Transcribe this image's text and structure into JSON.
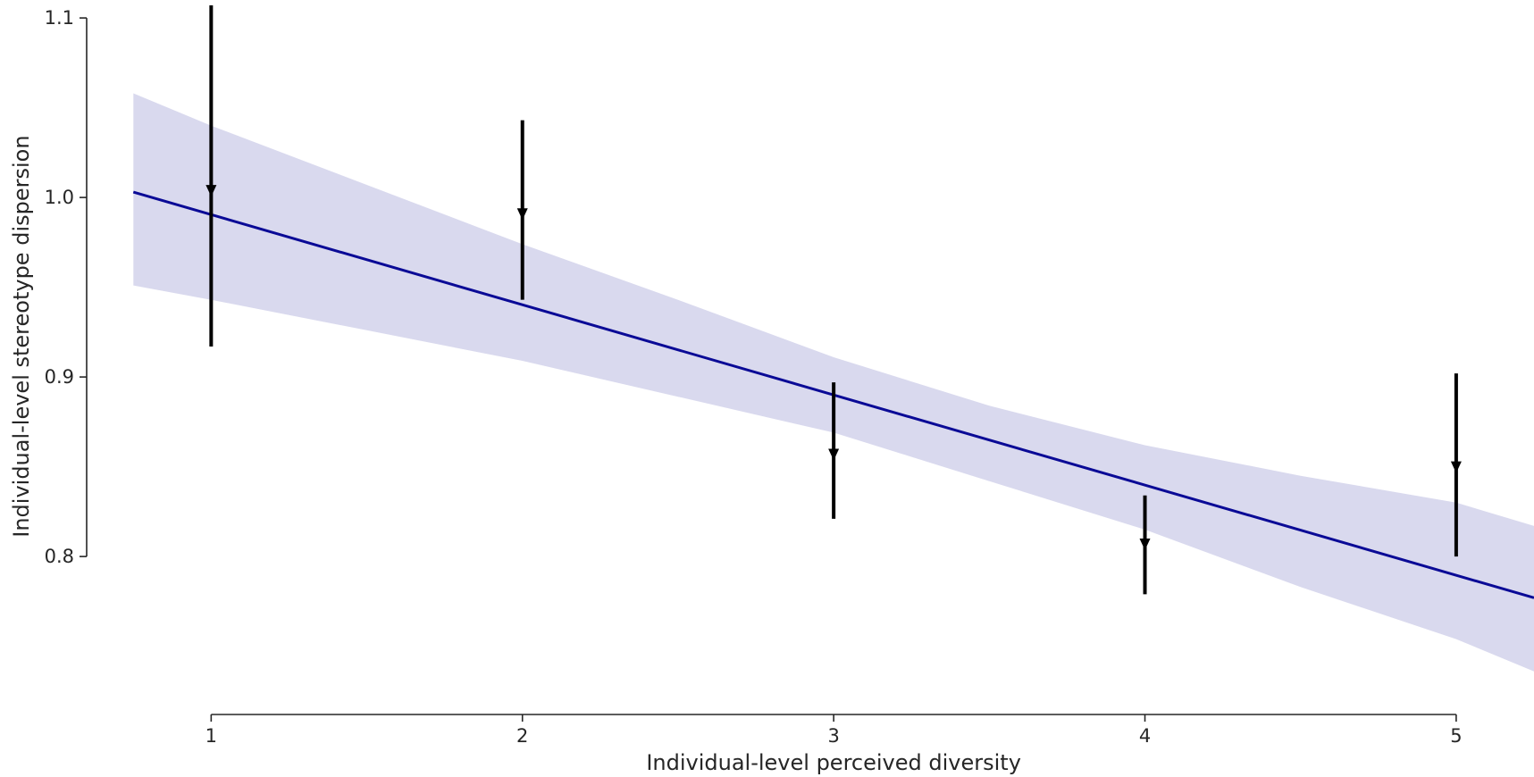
{
  "chart_data": {
    "type": "line",
    "title": "",
    "xlabel": "Individual-level perceived diversity",
    "ylabel": "Individual-level stereotype dispersion",
    "xlim": [
      0.6,
      5.25
    ],
    "ylim": [
      0.712,
      1.11
    ],
    "xticks": [
      1,
      2,
      3,
      4,
      5
    ],
    "xtick_labels": [
      "1",
      "2",
      "3",
      "4",
      "5"
    ],
    "yticks": [
      0.8,
      0.9,
      1.0,
      1.1
    ],
    "ytick_labels": [
      "0.8",
      "0.9",
      "1.0",
      "1.1"
    ],
    "grid": false,
    "colors": {
      "regression_line": "#0a0a96",
      "confidence_band": "#d9d9ee",
      "error_bars": "#000000",
      "axis": "#262626"
    },
    "regression_line": {
      "x": [
        0.75,
        5.25
      ],
      "y": [
        1.003,
        0.777
      ]
    },
    "confidence_band": {
      "x": [
        0.75,
        1.0,
        1.5,
        2.0,
        2.5,
        3.0,
        3.5,
        4.0,
        4.5,
        5.0,
        5.25
      ],
      "upper": [
        1.058,
        1.04,
        1.007,
        0.974,
        0.943,
        0.911,
        0.884,
        0.862,
        0.845,
        0.83,
        0.817
      ],
      "lower": [
        0.951,
        0.943,
        0.926,
        0.909,
        0.889,
        0.869,
        0.842,
        0.815,
        0.783,
        0.754,
        0.736
      ]
    },
    "points": [
      {
        "x": 1,
        "y": 1.004,
        "lower": 0.917,
        "upper": 1.107
      },
      {
        "x": 2,
        "y": 0.991,
        "lower": 0.943,
        "upper": 1.043
      },
      {
        "x": 3,
        "y": 0.857,
        "lower": 0.821,
        "upper": 0.897
      },
      {
        "x": 4,
        "y": 0.807,
        "lower": 0.779,
        "upper": 0.834
      },
      {
        "x": 5,
        "y": 0.85,
        "lower": 0.8,
        "upper": 0.902
      }
    ]
  }
}
